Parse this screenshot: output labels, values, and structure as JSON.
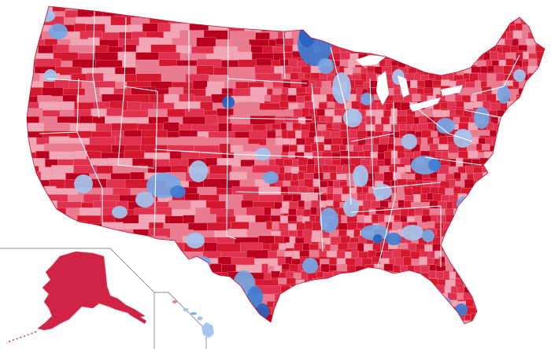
{
  "map": {
    "kind": "county-level choropleth",
    "colors": {
      "background": "#ffffff",
      "rep_dark": "#b9001e",
      "rep_strong": "#d3182f",
      "rep_medium": "#e0314f",
      "rep_light": "#e87b90",
      "rep_pale": "#f0a6b4",
      "dem_pale": "#a4c6ee",
      "dem_light": "#75a7e4",
      "dem_medium": "#3f7fd4",
      "dem_strong": "#2563c0",
      "state_border": "#ffffff",
      "inset_border": "#8a8a8a"
    },
    "regions": [
      "contiguous-us",
      "alaska-inset",
      "hawaii-inset"
    ],
    "visible_text": []
  }
}
